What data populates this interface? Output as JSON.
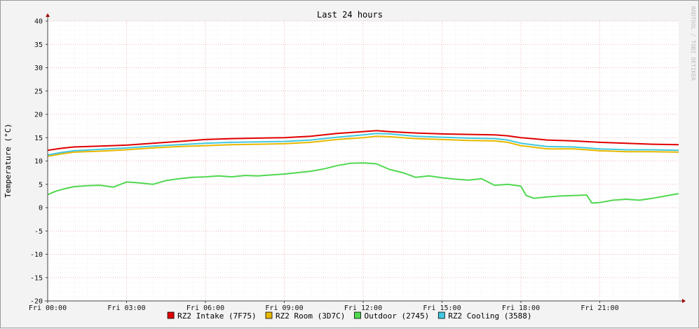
{
  "chart_data": {
    "type": "line",
    "title": "Last 24 hours",
    "ylabel": "Temperature (°C)",
    "xlabel": "",
    "watermark": "RRDTOOL / TOBI OETIKER",
    "ylim": [
      -20,
      40
    ],
    "yticks": [
      40,
      35,
      30,
      25,
      20,
      15,
      10,
      5,
      0,
      -5,
      -10,
      -15,
      -20
    ],
    "xlim": [
      0,
      24
    ],
    "xticks": [
      {
        "value": 0,
        "label": "Fri 00:00"
      },
      {
        "value": 3,
        "label": "Fri 03:00"
      },
      {
        "value": 6,
        "label": "Fri 06:00"
      },
      {
        "value": 9,
        "label": "Fri 09:00"
      },
      {
        "value": 12,
        "label": "Fri 12:00"
      },
      {
        "value": 15,
        "label": "Fri 15:00"
      },
      {
        "value": 18,
        "label": "Fri 18:00"
      },
      {
        "value": 21,
        "label": "Fri 21:00"
      }
    ],
    "grid": true,
    "legend_position": "bottom",
    "series": [
      {
        "name": "RZ2 Intake (7F75)",
        "color": "#E00000",
        "x": [
          0,
          0.5,
          1,
          2,
          3,
          4,
          5,
          6,
          7,
          8,
          9,
          10,
          11,
          12,
          12.5,
          13,
          14,
          15,
          16,
          17,
          17.5,
          18,
          19,
          20,
          21,
          22,
          23,
          24
        ],
        "y": [
          12.3,
          12.7,
          13.0,
          13.2,
          13.4,
          13.8,
          14.2,
          14.6,
          14.8,
          14.9,
          15.0,
          15.3,
          15.9,
          16.3,
          16.5,
          16.3,
          16.0,
          15.8,
          15.7,
          15.6,
          15.4,
          15.0,
          14.5,
          14.3,
          14.0,
          13.8,
          13.6,
          13.5
        ]
      },
      {
        "name": "RZ2 Room (3D7C)",
        "color": "#E8B800",
        "x": [
          0,
          0.5,
          1,
          2,
          3,
          4,
          5,
          6,
          7,
          8,
          9,
          10,
          11,
          12,
          12.5,
          13,
          14,
          15,
          16,
          17,
          17.5,
          18,
          19,
          20,
          21,
          22,
          23,
          24
        ],
        "y": [
          11.0,
          11.5,
          11.9,
          12.1,
          12.4,
          12.8,
          13.1,
          13.3,
          13.5,
          13.6,
          13.7,
          14.0,
          14.6,
          15.0,
          15.3,
          15.2,
          14.8,
          14.6,
          14.4,
          14.3,
          14.0,
          13.3,
          12.6,
          12.6,
          12.2,
          12.0,
          12.0,
          11.9
        ]
      },
      {
        "name": "Outdoor (2745)",
        "color": "#50D850",
        "x": [
          0,
          0.3,
          0.6,
          1,
          1.5,
          2,
          2.5,
          3,
          3.5,
          4,
          4.5,
          5,
          5.5,
          6,
          6.5,
          7,
          7.5,
          8,
          8.5,
          9,
          9.5,
          10,
          10.5,
          11,
          11.5,
          12,
          12.5,
          13,
          13.5,
          14,
          14.5,
          15,
          15.5,
          16,
          16.5,
          17,
          17.5,
          18,
          18.2,
          18.5,
          19,
          19.5,
          20,
          20.5,
          20.7,
          21,
          21.5,
          22,
          22.5,
          23,
          23.5,
          24
        ],
        "y": [
          2.8,
          3.5,
          4.0,
          4.5,
          4.7,
          4.8,
          4.4,
          5.5,
          5.3,
          5.0,
          5.8,
          6.2,
          6.5,
          6.6,
          6.8,
          6.6,
          6.9,
          6.8,
          7.0,
          7.2,
          7.5,
          7.8,
          8.3,
          9.0,
          9.5,
          9.6,
          9.4,
          8.2,
          7.5,
          6.5,
          6.8,
          6.4,
          6.1,
          5.9,
          6.2,
          4.8,
          5.0,
          4.6,
          2.6,
          2.0,
          2.3,
          2.5,
          2.6,
          2.7,
          1.0,
          1.1,
          1.6,
          1.8,
          1.6,
          2.0,
          2.5,
          3.0
        ]
      },
      {
        "name": "RZ2 Cooling (3588)",
        "color": "#40C8E0",
        "x": [
          0,
          0.5,
          1,
          2,
          3,
          4,
          5,
          6,
          7,
          8,
          9,
          10,
          11,
          12,
          12.5,
          13,
          14,
          15,
          16,
          17,
          17.5,
          18,
          19,
          20,
          21,
          22,
          23,
          24
        ],
        "y": [
          11.3,
          11.8,
          12.2,
          12.5,
          12.8,
          13.2,
          13.5,
          13.8,
          14.0,
          14.1,
          14.2,
          14.5,
          15.1,
          15.6,
          15.9,
          15.8,
          15.3,
          15.1,
          14.9,
          14.8,
          14.5,
          13.8,
          13.1,
          13.0,
          12.6,
          12.4,
          12.4,
          12.3
        ]
      }
    ]
  }
}
